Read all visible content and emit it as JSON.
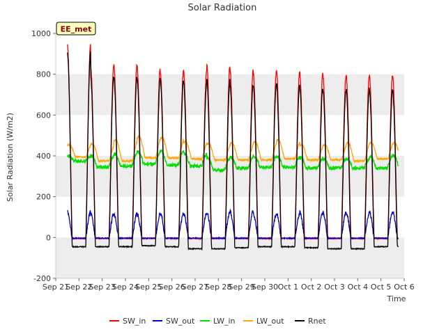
{
  "chart_data": {
    "type": "line",
    "title": "Solar Radiation",
    "xlabel": "Time",
    "ylabel": "Solar Radiation (W/m2)",
    "station_label": "EE_met",
    "ylim": [
      -200,
      1000
    ],
    "yticks": [
      -200,
      0,
      200,
      400,
      600,
      800,
      1000
    ],
    "xlim_days": [
      21,
      36
    ],
    "xticks": [
      "Sep 21",
      "Sep 22",
      "Sep 23",
      "Sep 24",
      "Sep 25",
      "Sep 26",
      "Sep 27",
      "Sep 28",
      "Sep 29",
      "Sep 30",
      "Oct 1",
      "Oct 2",
      "Oct 3",
      "Oct 4",
      "Oct 5",
      "Oct 6"
    ],
    "grid": "horizontal bands",
    "legend_position": "bottom",
    "data_start": "Sep 21 12:00",
    "data_end": "Oct 5 18:00",
    "series": [
      {
        "name": "SW_in",
        "color": "#ff0000",
        "daily_peak": [
          {
            "day": "Sep 22",
            "value": 940
          },
          {
            "day": "Sep 23",
            "value": 840
          },
          {
            "day": "Sep 24",
            "value": 845
          },
          {
            "day": "Sep 25",
            "value": 835
          },
          {
            "day": "Sep 26",
            "value": 810
          },
          {
            "day": "Sep 27",
            "value": 815
          },
          {
            "day": "Sep 28",
            "value": 845
          },
          {
            "day": "Sep 29",
            "value": 820
          },
          {
            "day": "Sep 30",
            "value": 810
          },
          {
            "day": "Oct 1",
            "value": 810
          },
          {
            "day": "Oct 2",
            "value": 805
          },
          {
            "day": "Oct 3",
            "value": 790
          },
          {
            "day": "Oct 4",
            "value": 790
          },
          {
            "day": "Oct 5",
            "value": 790
          }
        ],
        "night_value": -5
      },
      {
        "name": "SW_out",
        "color": "#0000cc",
        "daily_peak": [
          {
            "day": "Sep 22",
            "value": 125
          },
          {
            "day": "Sep 23",
            "value": 115
          },
          {
            "day": "Sep 24",
            "value": 115
          },
          {
            "day": "Sep 25",
            "value": 115
          },
          {
            "day": "Sep 26",
            "value": 118
          },
          {
            "day": "Sep 27",
            "value": 120
          },
          {
            "day": "Sep 28",
            "value": 125
          },
          {
            "day": "Sep 29",
            "value": 128
          },
          {
            "day": "Sep 30",
            "value": 115
          },
          {
            "day": "Oct 1",
            "value": 115
          },
          {
            "day": "Oct 2",
            "value": 122
          },
          {
            "day": "Oct 3",
            "value": 120
          },
          {
            "day": "Oct 4",
            "value": 120
          },
          {
            "day": "Oct 5",
            "value": 125
          }
        ],
        "night_value": -3
      },
      {
        "name": "LW_in",
        "color": "#00dd00",
        "daily_peak": [
          {
            "day": "Sep 22",
            "value": 400
          },
          {
            "day": "Sep 23",
            "value": 400
          },
          {
            "day": "Sep 24",
            "value": 410
          },
          {
            "day": "Sep 25",
            "value": 420
          },
          {
            "day": "Sep 26",
            "value": 425
          },
          {
            "day": "Sep 27",
            "value": 410
          },
          {
            "day": "Sep 28",
            "value": 390
          },
          {
            "day": "Sep 29",
            "value": 395
          },
          {
            "day": "Sep 30",
            "value": 400
          },
          {
            "day": "Oct 1",
            "value": 395
          },
          {
            "day": "Oct 2",
            "value": 390
          },
          {
            "day": "Oct 3",
            "value": 385
          },
          {
            "day": "Oct 4",
            "value": 385
          },
          {
            "day": "Oct 5",
            "value": 400
          }
        ],
        "night_value": [
          375,
          345,
          350,
          360,
          355,
          350,
          330,
          340,
          345,
          345,
          340,
          340,
          340,
          340
        ]
      },
      {
        "name": "LW_out",
        "color": "#ffa500",
        "daily_peak": [
          {
            "day": "Sep 22",
            "value": 455
          },
          {
            "day": "Sep 23",
            "value": 460
          },
          {
            "day": "Sep 24",
            "value": 480
          },
          {
            "day": "Sep 25",
            "value": 495
          },
          {
            "day": "Sep 26",
            "value": 490
          },
          {
            "day": "Sep 27",
            "value": 470
          },
          {
            "day": "Sep 28",
            "value": 460
          },
          {
            "day": "Sep 29",
            "value": 465
          },
          {
            "day": "Sep 30",
            "value": 470
          },
          {
            "day": "Oct 1",
            "value": 480
          },
          {
            "day": "Oct 2",
            "value": 455
          },
          {
            "day": "Oct 3",
            "value": 455
          },
          {
            "day": "Oct 4",
            "value": 465
          },
          {
            "day": "Oct 5",
            "value": 465
          }
        ],
        "night_value": [
          395,
          375,
          375,
          390,
          390,
          385,
          380,
          380,
          380,
          385,
          380,
          380,
          375,
          385
        ]
      },
      {
        "name": "Rnet",
        "color": "#000000",
        "daily_peak": [
          {
            "day": "Sep 22",
            "value": 905
          },
          {
            "day": "Sep 23",
            "value": 790
          },
          {
            "day": "Sep 24",
            "value": 790
          },
          {
            "day": "Sep 25",
            "value": 780
          },
          {
            "day": "Sep 26",
            "value": 765
          },
          {
            "day": "Sep 27",
            "value": 760
          },
          {
            "day": "Sep 28",
            "value": 770
          },
          {
            "day": "Sep 29",
            "value": 750
          },
          {
            "day": "Sep 30",
            "value": 750
          },
          {
            "day": "Oct 1",
            "value": 750
          },
          {
            "day": "Oct 2",
            "value": 740
          },
          {
            "day": "Oct 3",
            "value": 725
          },
          {
            "day": "Oct 4",
            "value": 725
          },
          {
            "day": "Oct 5",
            "value": 720
          }
        ],
        "night_value": [
          -45,
          -45,
          -45,
          -40,
          -45,
          -55,
          -55,
          -50,
          -45,
          -45,
          -50,
          -55,
          -55,
          -45
        ]
      }
    ]
  }
}
